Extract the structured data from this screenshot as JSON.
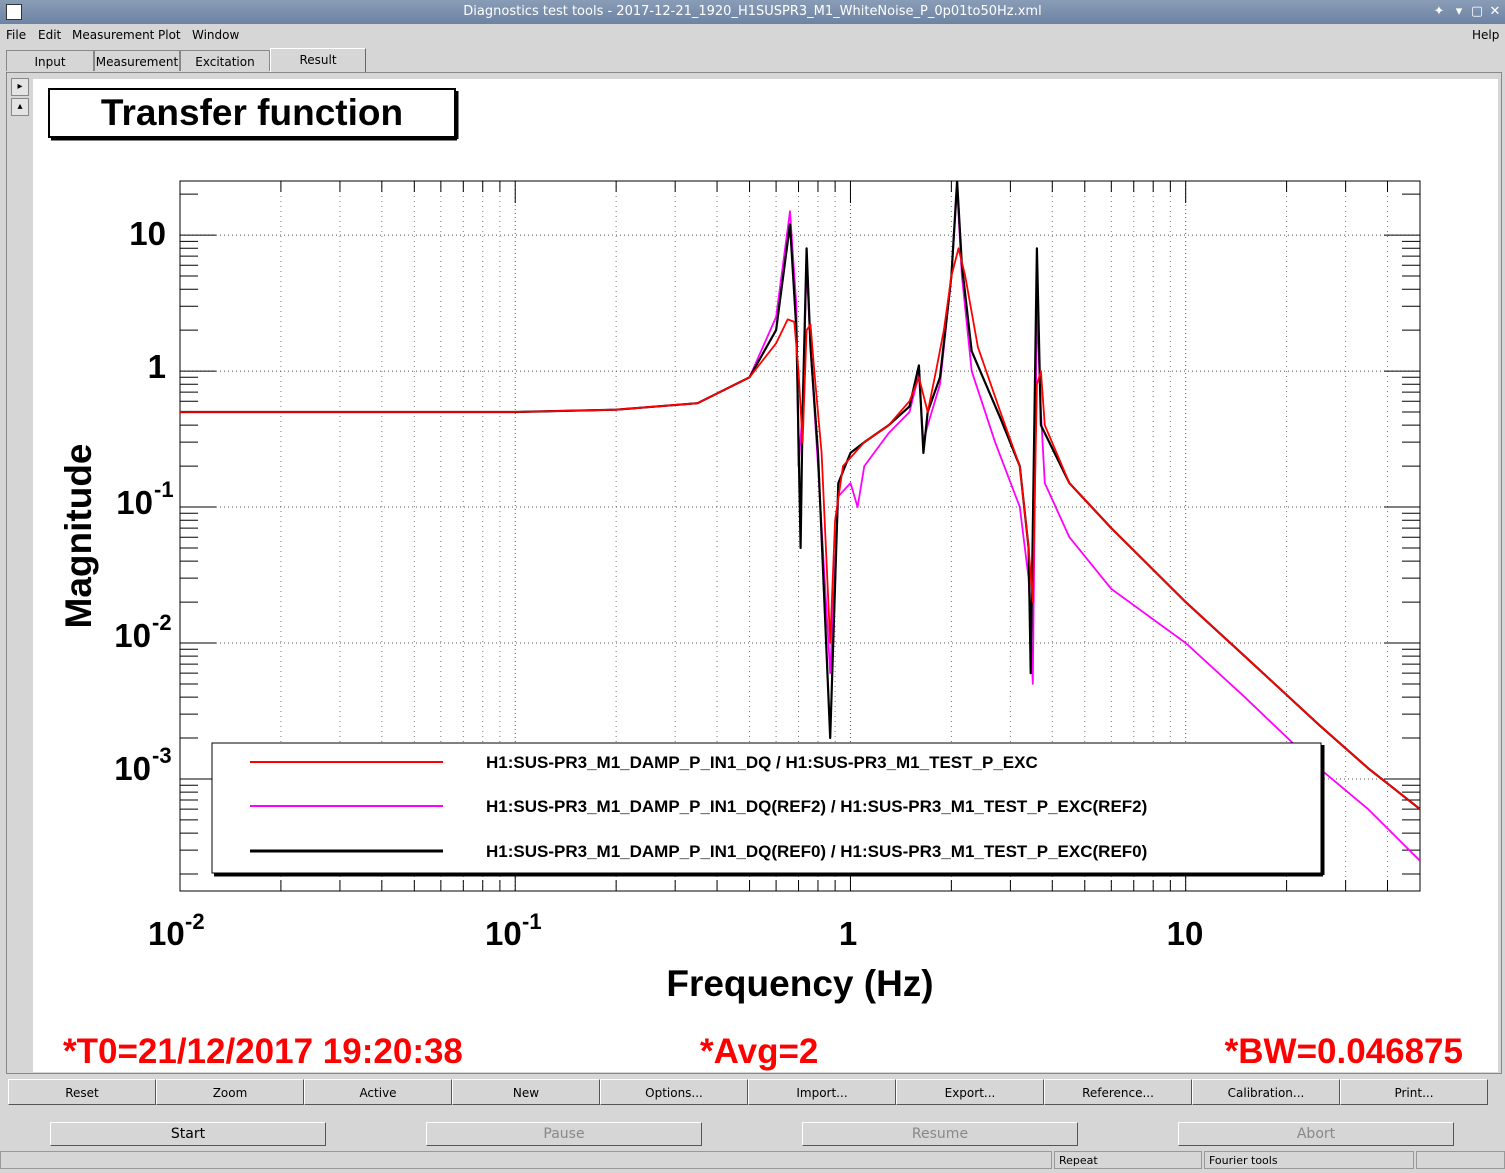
{
  "window": {
    "title": "Diagnostics test tools - 2017-12-21_1920_H1SUSPR3_M1_WhiteNoise_P_0p01to50Hz.xml"
  },
  "menu": {
    "items": [
      "File",
      "Edit",
      "Measurement",
      "Plot",
      "Window"
    ],
    "help": "Help"
  },
  "tabs": [
    "Input",
    "Measurement",
    "Excitation",
    "Result"
  ],
  "plot": {
    "title": "Transfer function",
    "t0": "*T0=21/12/2017 19:20:38",
    "avg": "*Avg=2",
    "bw": "*BW=0.046875"
  },
  "chart_data": {
    "type": "line",
    "title": "Transfer function",
    "xlabel": "Frequency (Hz)",
    "ylabel": "Magnitude",
    "x_scale": "log",
    "y_scale": "log",
    "xlim": [
      0.01,
      50
    ],
    "ylim": [
      0.00015,
      25
    ],
    "x_tick_labels": [
      "10-2",
      "10-1",
      "1",
      "10"
    ],
    "y_tick_labels": [
      "10-3",
      "10-2",
      "10-1",
      "1",
      "10"
    ],
    "grid": true,
    "legend_placement": "bottom-center",
    "series": [
      {
        "name": "H1:SUS-PR3_M1_DAMP_P_IN1_DQ / H1:SUS-PR3_M1_TEST_P_EXC",
        "color": "#ff0000",
        "points": [
          [
            0.01,
            0.5
          ],
          [
            0.1,
            0.5
          ],
          [
            0.2,
            0.52
          ],
          [
            0.35,
            0.58
          ],
          [
            0.5,
            0.9
          ],
          [
            0.6,
            1.6
          ],
          [
            0.65,
            2.4
          ],
          [
            0.68,
            2.3
          ],
          [
            0.7,
            1.0
          ],
          [
            0.72,
            0.3
          ],
          [
            0.74,
            2.0
          ],
          [
            0.76,
            2.2
          ],
          [
            0.78,
            1.0
          ],
          [
            0.82,
            0.25
          ],
          [
            0.87,
            0.01
          ],
          [
            0.9,
            0.08
          ],
          [
            0.95,
            0.2
          ],
          [
            1.1,
            0.3
          ],
          [
            1.3,
            0.4
          ],
          [
            1.5,
            0.6
          ],
          [
            1.6,
            0.9
          ],
          [
            1.7,
            0.5
          ],
          [
            1.8,
            1.0
          ],
          [
            1.9,
            2.0
          ],
          [
            2.0,
            5.0
          ],
          [
            2.1,
            8.0
          ],
          [
            2.2,
            5.0
          ],
          [
            2.4,
            1.5
          ],
          [
            2.8,
            0.5
          ],
          [
            3.2,
            0.2
          ],
          [
            3.4,
            0.05
          ],
          [
            3.5,
            0.02
          ],
          [
            3.6,
            0.8
          ],
          [
            3.7,
            1.0
          ],
          [
            3.8,
            0.4
          ],
          [
            4.5,
            0.15
          ],
          [
            6,
            0.07
          ],
          [
            10,
            0.02
          ],
          [
            15,
            0.008
          ],
          [
            25,
            0.0025
          ],
          [
            35,
            0.0012
          ],
          [
            50,
            0.0006
          ]
        ]
      },
      {
        "name": "H1:SUS-PR3_M1_DAMP_P_IN1_DQ(REF2) / H1:SUS-PR3_M1_TEST_P_EXC(REF2)",
        "color": "#ff00ff",
        "points": [
          [
            0.01,
            0.5
          ],
          [
            0.1,
            0.5
          ],
          [
            0.2,
            0.52
          ],
          [
            0.35,
            0.58
          ],
          [
            0.5,
            0.9
          ],
          [
            0.6,
            2.5
          ],
          [
            0.66,
            15.0
          ],
          [
            0.69,
            3.0
          ],
          [
            0.7,
            0.2
          ],
          [
            0.72,
            0.5
          ],
          [
            0.74,
            6.0
          ],
          [
            0.76,
            1.5
          ],
          [
            0.8,
            0.2
          ],
          [
            0.87,
            0.006
          ],
          [
            0.92,
            0.12
          ],
          [
            1.0,
            0.15
          ],
          [
            1.05,
            0.1
          ],
          [
            1.1,
            0.2
          ],
          [
            1.3,
            0.35
          ],
          [
            1.5,
            0.5
          ],
          [
            1.6,
            0.95
          ],
          [
            1.65,
            0.3
          ],
          [
            1.7,
            0.4
          ],
          [
            1.85,
            0.8
          ],
          [
            2.0,
            5.0
          ],
          [
            2.08,
            22.0
          ],
          [
            2.15,
            5.0
          ],
          [
            2.3,
            1.0
          ],
          [
            2.7,
            0.3
          ],
          [
            3.2,
            0.1
          ],
          [
            3.4,
            0.03
          ],
          [
            3.5,
            0.005
          ],
          [
            3.6,
            3.0
          ],
          [
            3.7,
            0.5
          ],
          [
            3.8,
            0.15
          ],
          [
            4.5,
            0.06
          ],
          [
            6,
            0.025
          ],
          [
            10,
            0.01
          ],
          [
            15,
            0.004
          ],
          [
            25,
            0.0012
          ],
          [
            35,
            0.0006
          ],
          [
            50,
            0.00025
          ]
        ]
      },
      {
        "name": "H1:SUS-PR3_M1_DAMP_P_IN1_DQ(REF0) / H1:SUS-PR3_M1_TEST_P_EXC(REF0)",
        "color": "#000000",
        "points": [
          [
            0.01,
            0.5
          ],
          [
            0.1,
            0.5
          ],
          [
            0.2,
            0.52
          ],
          [
            0.35,
            0.58
          ],
          [
            0.5,
            0.9
          ],
          [
            0.6,
            2.0
          ],
          [
            0.66,
            12.0
          ],
          [
            0.69,
            2.0
          ],
          [
            0.71,
            0.05
          ],
          [
            0.72,
            0.5
          ],
          [
            0.74,
            8.0
          ],
          [
            0.76,
            1.5
          ],
          [
            0.8,
            0.25
          ],
          [
            0.87,
            0.002
          ],
          [
            0.92,
            0.15
          ],
          [
            1.0,
            0.25
          ],
          [
            1.1,
            0.3
          ],
          [
            1.3,
            0.4
          ],
          [
            1.5,
            0.55
          ],
          [
            1.6,
            1.1
          ],
          [
            1.65,
            0.25
          ],
          [
            1.7,
            0.5
          ],
          [
            1.85,
            0.9
          ],
          [
            2.0,
            5.0
          ],
          [
            2.08,
            25.0
          ],
          [
            2.15,
            6.0
          ],
          [
            2.3,
            1.4
          ],
          [
            2.8,
            0.45
          ],
          [
            3.2,
            0.2
          ],
          [
            3.4,
            0.05
          ],
          [
            3.45,
            0.006
          ],
          [
            3.6,
            8.0
          ],
          [
            3.7,
            0.4
          ],
          [
            3.8,
            0.35
          ],
          [
            4.5,
            0.15
          ],
          [
            6,
            0.07
          ],
          [
            10,
            0.02
          ],
          [
            15,
            0.008
          ],
          [
            25,
            0.0025
          ],
          [
            35,
            0.0012
          ],
          [
            50,
            0.0006
          ]
        ]
      }
    ]
  },
  "buttons": [
    "Reset",
    "Zoom",
    "Active",
    "New",
    "Options...",
    "Import...",
    "Export...",
    "Reference...",
    "Calibration...",
    "Print..."
  ],
  "controls": [
    "Start",
    "Pause",
    "Resume",
    "Abort"
  ],
  "status": {
    "repeat": "Repeat",
    "fourier": "Fourier tools"
  }
}
